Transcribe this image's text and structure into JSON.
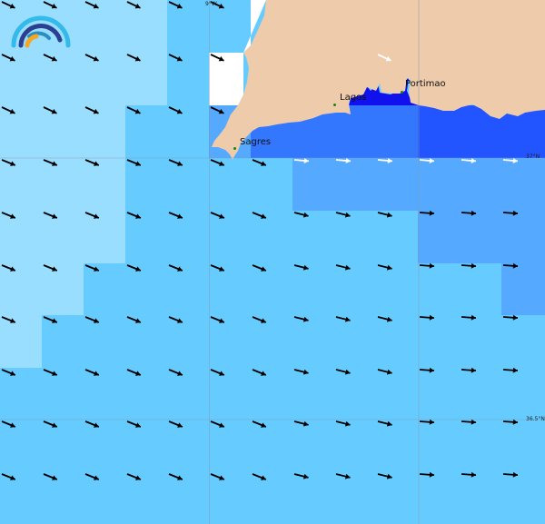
{
  "map": {
    "places": [
      {
        "name": "Sagres"
      },
      {
        "name": "Lagos"
      },
      {
        "name": "Portimao"
      }
    ],
    "grid_labels": {
      "lon_9w": "9°W",
      "lat_37n": "37°N",
      "lat_36_5n": "36.5°N"
    },
    "colors": {
      "land": "#eecbaa",
      "level_1": "#99ddff",
      "level_2": "#66ccff",
      "level_3": "#55aaff",
      "level_4": "#3377ff",
      "level_5": "#2255ff",
      "level_6": "#1111ee",
      "arrow": "#000000",
      "arrow_strong": "#ffffff"
    },
    "logo": "wave-arcs-logo"
  }
}
